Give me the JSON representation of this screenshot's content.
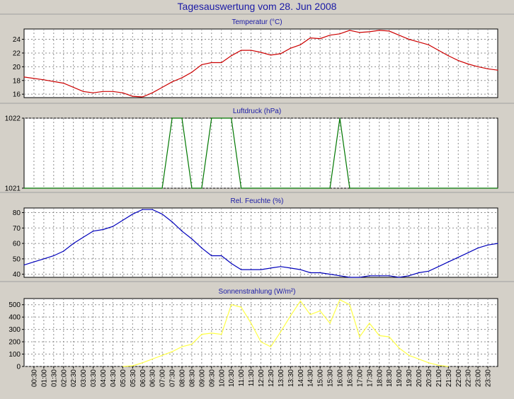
{
  "page": {
    "title": "Tagesauswertung vom 28. Jun 2008",
    "colors": {
      "background": "#d4d0c8",
      "plot_background": "#ffffff",
      "grid": "#8c8c8c",
      "title_text": "#1a1aa6"
    }
  },
  "x_axis": {
    "ticks": [
      "00:30",
      "01:00",
      "01:30",
      "02:00",
      "02:30",
      "03:00",
      "03:30",
      "04:00",
      "04:30",
      "05:00",
      "05:30",
      "06:00",
      "06:30",
      "07:00",
      "07:30",
      "08:00",
      "08:30",
      "09:00",
      "09:30",
      "10:00",
      "10:30",
      "11:00",
      "11:30",
      "12:00",
      "12:30",
      "13:00",
      "13:30",
      "14:00",
      "14:30",
      "15:00",
      "15:30",
      "16:00",
      "16:30",
      "17:00",
      "17:30",
      "18:00",
      "18:30",
      "19:00",
      "19:30",
      "20:00",
      "20:30",
      "21:00",
      "21:30",
      "22:00",
      "22:30",
      "23:00",
      "23:30"
    ]
  },
  "chart_data": [
    {
      "type": "line",
      "title": "Temperatur (°C)",
      "color": "#cc0000",
      "grid": true,
      "ylim": [
        15.5,
        25.5
      ],
      "yticks": [
        16,
        18,
        20,
        22,
        24
      ],
      "x": [
        "00:00",
        "01:00",
        "02:00",
        "03:00",
        "03:30",
        "04:00",
        "04:30",
        "05:00",
        "05:30",
        "06:00",
        "06:30",
        "07:00",
        "07:30",
        "08:00",
        "08:30",
        "09:00",
        "09:30",
        "10:00",
        "10:30",
        "11:00",
        "11:30",
        "12:00",
        "12:30",
        "13:00",
        "13:30",
        "14:00",
        "14:30",
        "15:00",
        "15:30",
        "16:00",
        "16:30",
        "17:00",
        "17:30",
        "18:00",
        "18:30",
        "19:00",
        "19:30",
        "20:00",
        "20:30",
        "21:00",
        "21:30",
        "22:00",
        "22:30",
        "23:00",
        "23:30",
        "24:00"
      ],
      "values": [
        18.5,
        18.1,
        17.6,
        16.4,
        16.2,
        16.4,
        16.4,
        16.2,
        15.7,
        15.6,
        16.2,
        17.0,
        17.8,
        18.4,
        19.2,
        20.3,
        20.6,
        20.6,
        21.6,
        22.4,
        22.4,
        22.1,
        21.7,
        21.9,
        22.7,
        23.2,
        24.2,
        24.1,
        24.6,
        24.8,
        25.3,
        25.0,
        25.1,
        25.3,
        25.2,
        24.6,
        24.0,
        23.6,
        23.2,
        22.4,
        21.6,
        20.9,
        20.4,
        20.0,
        19.7,
        19.5
      ]
    },
    {
      "type": "line",
      "title": "Luftdruck (hPa)",
      "color": "#007700",
      "grid": true,
      "ylim": [
        1021,
        1022
      ],
      "yticks": [
        1021,
        1022
      ],
      "x": [
        "00:00",
        "07:00",
        "07:30",
        "08:00",
        "08:30",
        "09:00",
        "09:30",
        "10:00",
        "10:30",
        "11:00",
        "11:30",
        "15:30",
        "16:00",
        "16:30",
        "24:00"
      ],
      "values": [
        1021,
        1021,
        1022,
        1022,
        1021,
        1021,
        1022,
        1022,
        1022,
        1021,
        1021,
        1021,
        1022,
        1021,
        1021
      ]
    },
    {
      "type": "line",
      "title": "Rel. Feuchte (%)",
      "color": "#0000bb",
      "grid": true,
      "ylim": [
        38,
        83
      ],
      "yticks": [
        40,
        50,
        60,
        70,
        80
      ],
      "x": [
        "00:00",
        "00:30",
        "01:00",
        "01:30",
        "02:00",
        "02:30",
        "03:00",
        "03:30",
        "04:00",
        "04:30",
        "05:00",
        "05:30",
        "06:00",
        "06:30",
        "07:00",
        "07:30",
        "08:00",
        "08:30",
        "09:00",
        "09:30",
        "10:00",
        "10:30",
        "11:00",
        "11:30",
        "12:00",
        "12:30",
        "13:00",
        "13:30",
        "14:00",
        "14:30",
        "15:00",
        "15:30",
        "16:00",
        "16:30",
        "17:00",
        "17:30",
        "18:00",
        "18:30",
        "19:00",
        "19:30",
        "20:00",
        "20:30",
        "21:00",
        "21:30",
        "22:00",
        "22:30",
        "23:00",
        "23:30",
        "24:00"
      ],
      "values": [
        46,
        48,
        50,
        52,
        55,
        60,
        64,
        68,
        69,
        71,
        75,
        79,
        82,
        82,
        79,
        74,
        68,
        63,
        57,
        52,
        52,
        47,
        43,
        43,
        43,
        44,
        45,
        44,
        43,
        41,
        41,
        40,
        39,
        38,
        38,
        39,
        39,
        39,
        38,
        39,
        41,
        42,
        45,
        48,
        51,
        54,
        57,
        59,
        60
      ]
    },
    {
      "type": "line",
      "title": "Sonnenstrahlung (W/m²)",
      "color": "#ffff44",
      "grid": true,
      "ylim": [
        0,
        550
      ],
      "yticks": [
        0,
        100,
        200,
        300,
        400,
        500
      ],
      "x": [
        "05:00",
        "05:30",
        "06:00",
        "06:30",
        "07:00",
        "07:30",
        "08:00",
        "08:30",
        "09:00",
        "09:30",
        "10:00",
        "10:30",
        "11:00",
        "11:30",
        "12:00",
        "12:30",
        "13:00",
        "13:30",
        "14:00",
        "14:30",
        "15:00",
        "15:30",
        "16:00",
        "16:30",
        "17:00",
        "17:30",
        "18:00",
        "18:30",
        "19:00",
        "19:30",
        "20:00",
        "20:30",
        "21:00",
        "21:30"
      ],
      "values": [
        0,
        5,
        30,
        60,
        90,
        120,
        160,
        180,
        260,
        270,
        260,
        500,
        480,
        350,
        200,
        160,
        280,
        410,
        530,
        420,
        450,
        350,
        540,
        500,
        240,
        350,
        250,
        240,
        150,
        90,
        60,
        30,
        10,
        0
      ]
    }
  ]
}
